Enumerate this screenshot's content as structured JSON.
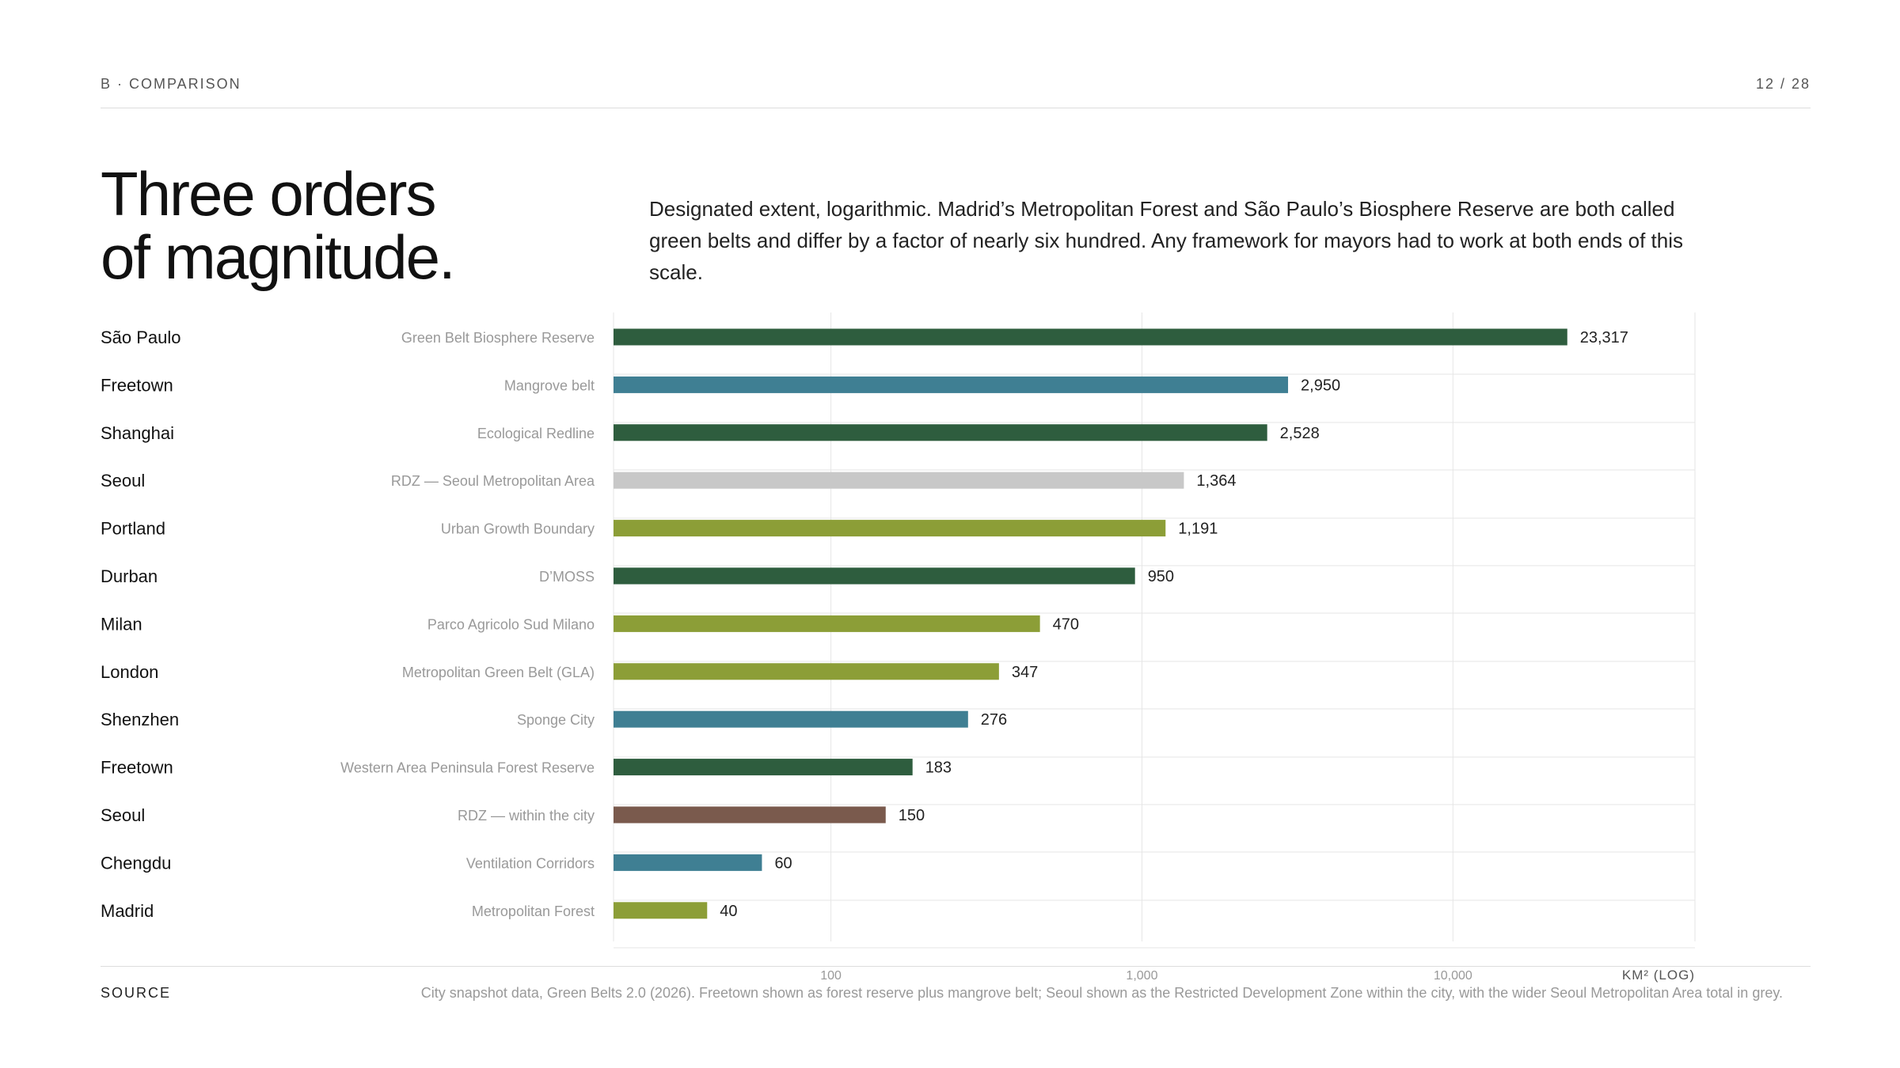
{
  "header": {
    "section": "B · COMPARISON",
    "page": "12 / 28"
  },
  "title_lines": [
    "Three orders",
    "of magnitude."
  ],
  "lede": "Designated extent, logarithmic. Madrid’s Metropolitan Forest and São Paulo’s Biosphere Reserve are both called green belts and differ by a factor of nearly six hundred. Any framework for mayors had to work at both ends of this scale.",
  "colors": {
    "dark_green": "#2e5d3e",
    "teal": "#3f7f93",
    "light_grey": "#c8c8c8",
    "olive": "#8c9e37",
    "brown": "#7a5a4d"
  },
  "chart_data": {
    "type": "bar",
    "orientation": "horizontal",
    "x_scale": "log",
    "xlim": [
      20,
      60000
    ],
    "x_ticks": [
      100,
      1000,
      10000
    ],
    "x_tick_labels": [
      "100",
      "1,000",
      "10,000"
    ],
    "xlabel": "KM² (LOG)",
    "grid": true,
    "rows": [
      {
        "city": "São Paulo",
        "name": "Green Belt Biosphere Reserve",
        "value": 23317,
        "label": "23,317",
        "color": "#2e5d3e"
      },
      {
        "city": "Freetown",
        "name": "Mangrove belt",
        "value": 2950,
        "label": "2,950",
        "color": "#3f7f93"
      },
      {
        "city": "Shanghai",
        "name": "Ecological Redline",
        "value": 2528,
        "label": "2,528",
        "color": "#2e5d3e"
      },
      {
        "city": "Seoul",
        "name": "RDZ — Seoul Metropolitan Area",
        "value": 1364,
        "label": "1,364",
        "color": "#c8c8c8"
      },
      {
        "city": "Portland",
        "name": "Urban Growth Boundary",
        "value": 1191,
        "label": "1,191",
        "color": "#8c9e37"
      },
      {
        "city": "Durban",
        "name": "D’MOSS",
        "value": 950,
        "label": "950",
        "color": "#2e5d3e"
      },
      {
        "city": "Milan",
        "name": "Parco Agricolo Sud Milano",
        "value": 470,
        "label": "470",
        "color": "#8c9e37"
      },
      {
        "city": "London",
        "name": "Metropolitan Green Belt (GLA)",
        "value": 347,
        "label": "347",
        "color": "#8c9e37"
      },
      {
        "city": "Shenzhen",
        "name": "Sponge City",
        "value": 276,
        "label": "276",
        "color": "#3f7f93"
      },
      {
        "city": "Freetown",
        "name": "Western Area Peninsula Forest Reserve",
        "value": 183,
        "label": "183",
        "color": "#2e5d3e"
      },
      {
        "city": "Seoul",
        "name": "RDZ — within the city",
        "value": 150,
        "label": "150",
        "color": "#7a5a4d"
      },
      {
        "city": "Chengdu",
        "name": "Ventilation Corridors",
        "value": 60,
        "label": "60",
        "color": "#3f7f93"
      },
      {
        "city": "Madrid",
        "name": "Metropolitan Forest",
        "value": 40,
        "label": "40",
        "color": "#8c9e37"
      }
    ]
  },
  "footer": {
    "source_label": "SOURCE",
    "source_text": "City snapshot data, Green Belts 2.0 (2026). Freetown shown as forest reserve plus mangrove belt; Seoul shown as the Restricted Development Zone within the city, with the wider Seoul Metropolitan Area total in grey."
  }
}
